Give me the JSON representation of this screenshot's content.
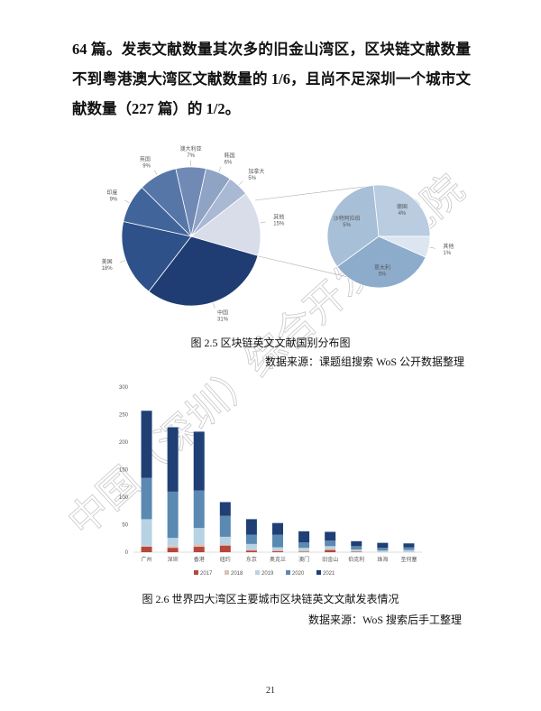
{
  "paragraph": "64 篇。发表文献数量其次多的旧金山湾区，区块链文献数量不到粤港澳大湾区文献数量的 1/6，且尚不足深圳一个城市文献数量（227 篇）的 1/2。",
  "watermark": "中国（深圳）综合开发研究院",
  "page_number": "21",
  "chart_data": [
    {
      "type": "pie",
      "categories": [
        "中国",
        "美国",
        "印度",
        "英国",
        "澳大利亚",
        "韩国",
        "加拿大",
        "其他"
      ],
      "values": [
        31,
        18,
        9,
        9,
        7,
        6,
        5,
        15
      ],
      "value_labels": [
        "31%",
        "18%",
        "9%",
        "9%",
        "7%",
        "6%",
        "5%",
        "15%"
      ],
      "colors": [
        "#1f3d73",
        "#2f5189",
        "#41649b",
        "#5676a8",
        "#7089b5",
        "#8fa3c5",
        "#a9b8d3",
        "#d8dde9"
      ],
      "breakout": {
        "categories": [
          "德国",
          "其他",
          "意大利",
          "沙特阿拉伯"
        ],
        "values": [
          4,
          1,
          5,
          5
        ],
        "value_labels": [
          "4%",
          "1%",
          "5%",
          "5%"
        ],
        "colors": [
          "#b9cce0",
          "#dce6f0",
          "#8daccc",
          "#a7bfd7"
        ]
      },
      "caption": "图 2.5 区块链英文文献国别分布图",
      "source": "数据来源：课题组搜索 WoS 公开数据整理"
    },
    {
      "type": "bar",
      "stacked": true,
      "categories": [
        "广州",
        "深圳",
        "香港",
        "纽约",
        "东京",
        "奥克兰",
        "澳门",
        "旧金山",
        "伯克利",
        "珠海",
        "圣何塞"
      ],
      "series": [
        {
          "name": "2017",
          "color": "#b5483a",
          "values": [
            10,
            8,
            10,
            12,
            3,
            2,
            1,
            4,
            1,
            0,
            0
          ]
        },
        {
          "name": "2018",
          "color": "#dcc1b8",
          "values": [
            2,
            4,
            4,
            2,
            2,
            2,
            2,
            2,
            1,
            1,
            1
          ]
        },
        {
          "name": "2019",
          "color": "#b7d3e3",
          "values": [
            48,
            14,
            30,
            14,
            10,
            5,
            5,
            5,
            3,
            2,
            3
          ]
        },
        {
          "name": "2020",
          "color": "#5a89b2",
          "values": [
            75,
            84,
            68,
            38,
            17,
            23,
            10,
            10,
            6,
            5,
            5
          ]
        },
        {
          "name": "2021",
          "color": "#1f3f75",
          "values": [
            122,
            117,
            107,
            25,
            28,
            21,
            20,
            16,
            9,
            9,
            7
          ]
        }
      ],
      "ylim": [
        0,
        300
      ],
      "yticks": [
        0,
        50,
        100,
        150,
        200,
        250,
        300
      ],
      "caption": "图 2.6 世界四大湾区主要城市区块链英文文献发表情况",
      "source": "数据来源：WoS 搜索后手工整理"
    }
  ]
}
